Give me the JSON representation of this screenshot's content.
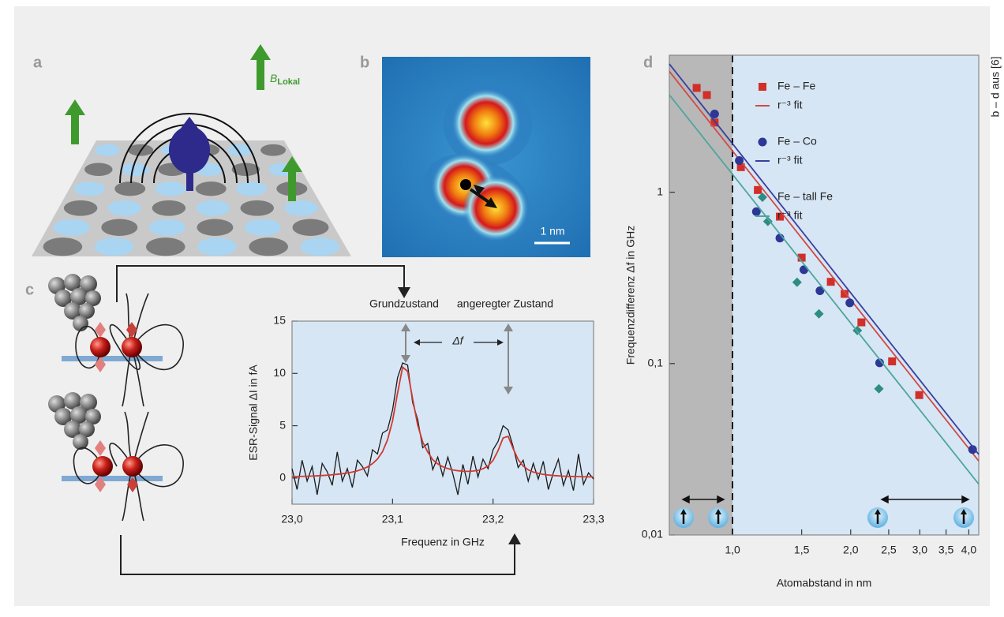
{
  "panel_labels": [
    "a",
    "b",
    "c",
    "d"
  ],
  "panel_a": {
    "field_symbol": "B",
    "field_subscript": "Lokal"
  },
  "panel_b": {
    "scale_bar": "1 nm"
  },
  "credit": "b – d aus [6]",
  "chart_data": [
    {
      "type": "line",
      "xlabel": "Frequenz in GHz",
      "ylabel": "ESR-Signal ΔI in fA",
      "annotations": [
        "Grundzustand",
        "angeregter Zustand",
        "Δf"
      ],
      "xlim": [
        23.0,
        23.3
      ],
      "ylim": [
        -2.5,
        15
      ],
      "xticks": [
        {
          "value": 23.0,
          "label": "23,0"
        },
        {
          "value": 23.1,
          "label": "23,1"
        },
        {
          "value": 23.2,
          "label": "23,2"
        },
        {
          "value": 23.3,
          "label": "23,3"
        }
      ],
      "yticks": [
        0,
        5,
        10,
        15
      ],
      "x": [
        23,
        23.005,
        23.01,
        23.015,
        23.02,
        23.025,
        23.03,
        23.035,
        23.04,
        23.045,
        23.05,
        23.055,
        23.06,
        23.065,
        23.07,
        23.075,
        23.08,
        23.085,
        23.09,
        23.095,
        23.1,
        23.105,
        23.11,
        23.115,
        23.12,
        23.125,
        23.13,
        23.135,
        23.14,
        23.145,
        23.15,
        23.155,
        23.16,
        23.165,
        23.17,
        23.175,
        23.18,
        23.185,
        23.19,
        23.195,
        23.2,
        23.205,
        23.21,
        23.215,
        23.22,
        23.225,
        23.23,
        23.235,
        23.24,
        23.245,
        23.25,
        23.255,
        23.26,
        23.265,
        23.27,
        23.275,
        23.28,
        23.285,
        23.29,
        23.295,
        23.3
      ],
      "series": [
        {
          "color": "#1a1a1a",
          "values": [
            0.9,
            -1.1,
            1.7,
            -0.3,
            1.1,
            -1.6,
            1.4,
            0.6,
            -0.7,
            2.5,
            -0.3,
            0.9,
            -0.9,
            1.7,
            1.1,
            0.2,
            2.7,
            2.3,
            4.3,
            4.6,
            6.5,
            9.6,
            11.0,
            10.8,
            7.2,
            5.6,
            2.9,
            3.3,
            0.8,
            2.0,
            0.2,
            2.0,
            0.4,
            -1.6,
            1.3,
            -0.6,
            2.1,
            0.1,
            1.8,
            0.9,
            2.7,
            3.5,
            5.0,
            4.6,
            3.0,
            1.0,
            1.7,
            -0.3,
            1.4,
            -0.1,
            1.6,
            -1.1,
            0.5,
            1.8,
            -0.7,
            0.7,
            -1.2,
            2.3,
            -0.6,
            0.5,
            -0.1
          ]
        },
        {
          "color": "#d0392f",
          "values": [
            0.13,
            0.14,
            0.16,
            0.17,
            0.19,
            0.21,
            0.24,
            0.27,
            0.31,
            0.36,
            0.41,
            0.48,
            0.57,
            0.69,
            0.85,
            1.06,
            1.37,
            1.82,
            2.52,
            3.65,
            5.46,
            8.12,
            10.6,
            10.2,
            7.57,
            5.07,
            3.45,
            2.49,
            1.75,
            1.35,
            1.08,
            0.9,
            0.77,
            0.7,
            0.65,
            0.64,
            0.67,
            0.73,
            0.89,
            1.16,
            1.69,
            2.62,
            3.83,
            3.99,
            2.81,
            1.76,
            1.14,
            0.78,
            0.57,
            0.45,
            0.35,
            0.29,
            0.24,
            0.21,
            0.18,
            0.16,
            0.15,
            0.13,
            0.12,
            0.11,
            0.1
          ]
        }
      ]
    },
    {
      "type": "scatter",
      "xlabel": "Atomabstand in nm",
      "ylabel": "Frequenzdifferenz Δf in GHz",
      "xscale": "log",
      "yscale": "log",
      "legend": "upper right",
      "xlim": [
        0.69,
        4.24
      ],
      "ylim": [
        0.01,
        6.3
      ],
      "xticks": [
        {
          "value": 1.0,
          "label": "1,0"
        },
        {
          "value": 1.5,
          "label": "1,5"
        },
        {
          "value": 2.0,
          "label": "2,0"
        },
        {
          "value": 2.5,
          "label": "2,5"
        },
        {
          "value": 3.0,
          "label": "3,0"
        },
        {
          "value": 3.5,
          "label": "3,5"
        },
        {
          "value": 4.0,
          "label": "4,0"
        }
      ],
      "yticks": [
        {
          "value": 0.01,
          "label": "0,01"
        },
        {
          "value": 0.1,
          "label": "0,1"
        },
        1
      ],
      "series": [
        {
          "name": "Fe – Fe",
          "color": "#d12f2a",
          "mode": "markers",
          "marker": "square",
          "x": [
            0.81,
            0.86,
            0.9,
            1.05,
            1.16,
            1.32,
            1.5,
            1.78,
            1.93,
            2.13,
            2.55,
            2.99
          ],
          "values": [
            4.06,
            3.69,
            2.55,
            1.4,
            1.03,
            0.72,
            0.415,
            0.3,
            0.255,
            0.174,
            0.103,
            0.0655
          ]
        },
        {
          "name": "r⁻³ fit",
          "color": "#d14a45",
          "mode": "line",
          "x": [
            0.69,
            4.24
          ],
          "values": [
            5.07,
            0.027
          ]
        },
        {
          "name": "Fe – Co",
          "color": "#2c3796",
          "mode": "markers",
          "marker": "circle",
          "x": [
            0.9,
            1.04,
            1.15,
            1.32,
            1.52,
            1.67,
            1.99,
            2.37,
            4.09
          ],
          "values": [
            2.86,
            1.53,
            0.77,
            0.54,
            0.353,
            0.266,
            0.226,
            0.101,
            0.0315
          ]
        },
        {
          "name": "r⁻³ fit",
          "color": "#3a3f9e",
          "mode": "line",
          "x": [
            0.69,
            4.24
          ],
          "values": [
            5.6,
            0.0295
          ]
        },
        {
          "name": "Fe – tall Fe",
          "color": "#2e8c82",
          "mode": "markers",
          "marker": "diamond",
          "x": [
            1.23,
            1.46,
            1.66,
            2.08,
            2.36
          ],
          "values": [
            0.675,
            0.298,
            0.195,
            0.156,
            0.0713
          ]
        },
        {
          "name": "r⁻³ fit",
          "color": "#4fa59b",
          "mode": "line",
          "x": [
            0.69,
            4.24
          ],
          "values": [
            3.7,
            0.0198
          ]
        }
      ]
    }
  ]
}
